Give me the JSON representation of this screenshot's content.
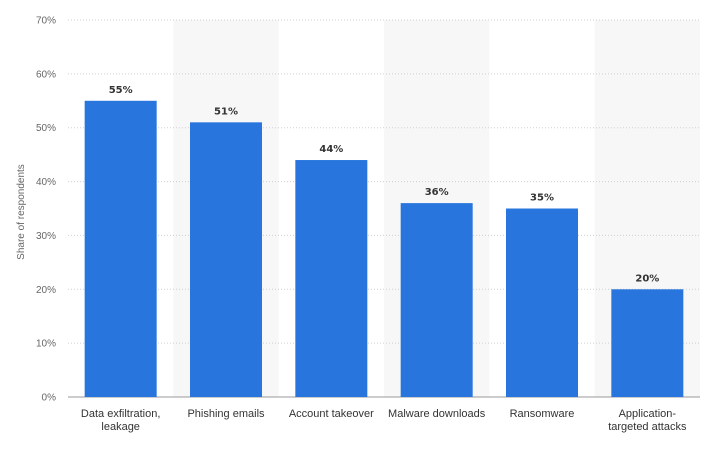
{
  "chart_data": {
    "type": "bar",
    "title": "",
    "xlabel": "",
    "ylabel": "Share of respondents",
    "categories": [
      [
        "Data exfiltration,",
        "leakage"
      ],
      [
        "Phishing emails"
      ],
      [
        "Account takeover"
      ],
      [
        "Malware downloads"
      ],
      [
        "Ransomware"
      ],
      [
        "Application-",
        "targeted attacks"
      ]
    ],
    "values": [
      55,
      51,
      44,
      36,
      35,
      20
    ],
    "value_labels": [
      "55%",
      "51%",
      "44%",
      "36%",
      "35%",
      "20%"
    ],
    "ylim": [
      0,
      70
    ],
    "yticks": [
      0,
      10,
      20,
      30,
      40,
      50,
      60,
      70
    ],
    "ytick_labels": [
      "0%",
      "10%",
      "20%",
      "30%",
      "40%",
      "50%",
      "60%",
      "70%"
    ],
    "grid": true,
    "alternating_band_background": true,
    "colors": {
      "bar": "#2876dd",
      "band": "#f7f7f7",
      "grid": "#cfcfcf",
      "text": "#333333",
      "axis_text": "#666666"
    }
  }
}
